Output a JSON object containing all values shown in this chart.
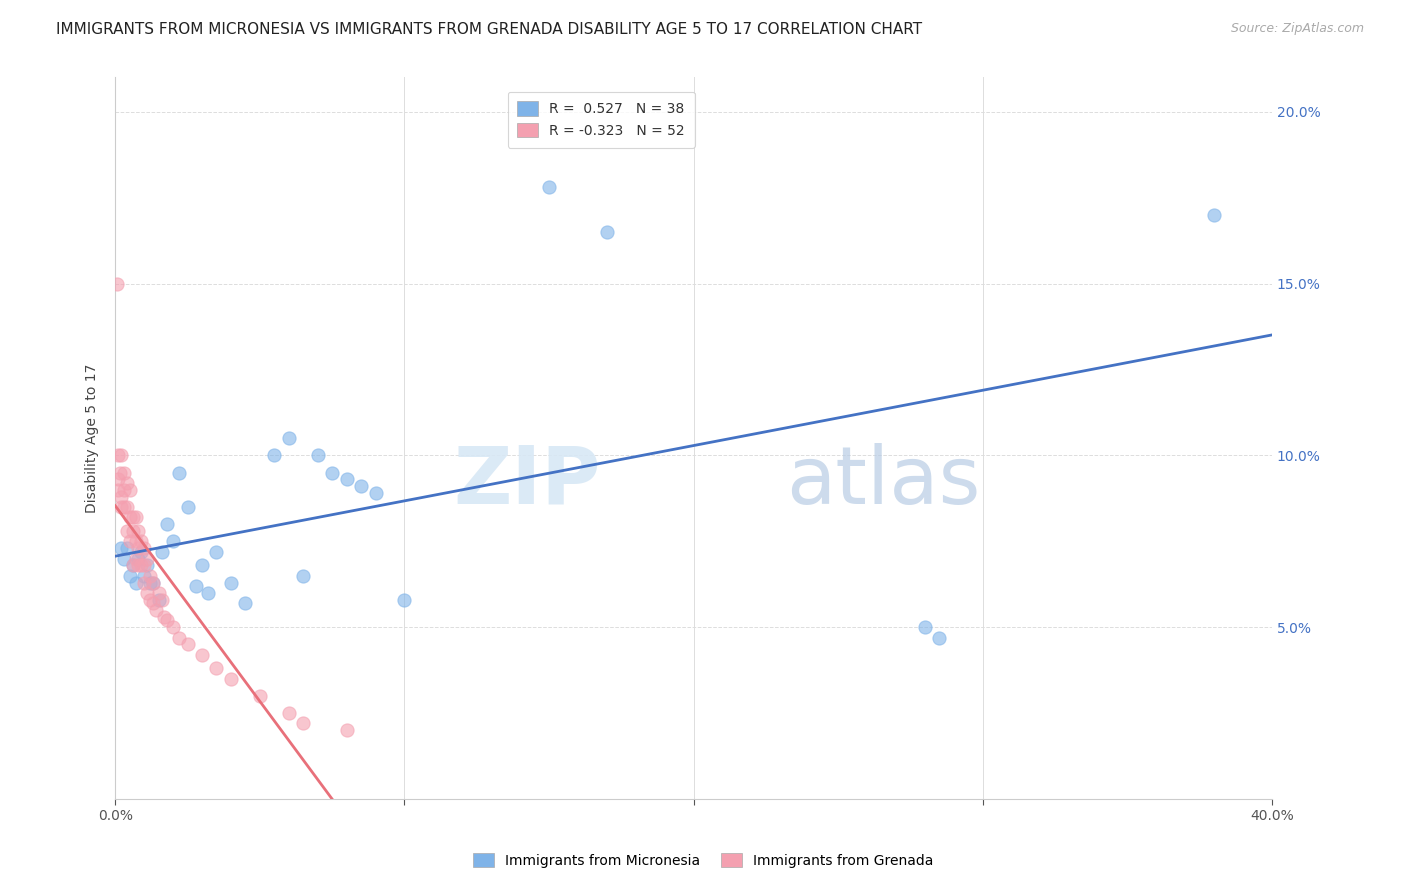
{
  "title": "IMMIGRANTS FROM MICRONESIA VS IMMIGRANTS FROM GRENADA DISABILITY AGE 5 TO 17 CORRELATION CHART",
  "source": "Source: ZipAtlas.com",
  "ylabel": "Disability Age 5 to 17",
  "xlim": [
    0.0,
    0.4
  ],
  "ylim": [
    0.0,
    0.21
  ],
  "xticks": [
    0.0,
    0.1,
    0.2,
    0.3,
    0.4
  ],
  "yticks": [
    0.0,
    0.05,
    0.1,
    0.15,
    0.2
  ],
  "blue_R": 0.527,
  "blue_N": 38,
  "pink_R": -0.323,
  "pink_N": 52,
  "blue_color": "#7FB3E8",
  "pink_color": "#F4A0B0",
  "blue_line_color": "#4472C4",
  "pink_line_color": "#E8707A",
  "grid_color": "#DDDDDD",
  "background_color": "#FFFFFF",
  "blue_scatter_x": [
    0.002,
    0.003,
    0.004,
    0.005,
    0.006,
    0.007,
    0.008,
    0.009,
    0.01,
    0.011,
    0.012,
    0.013,
    0.015,
    0.016,
    0.018,
    0.02,
    0.022,
    0.025,
    0.028,
    0.03,
    0.032,
    0.035,
    0.04,
    0.045,
    0.055,
    0.06,
    0.065,
    0.07,
    0.075,
    0.08,
    0.085,
    0.09,
    0.1,
    0.15,
    0.17,
    0.28,
    0.285,
    0.38
  ],
  "blue_scatter_y": [
    0.073,
    0.07,
    0.073,
    0.065,
    0.068,
    0.063,
    0.07,
    0.072,
    0.065,
    0.068,
    0.063,
    0.063,
    0.058,
    0.072,
    0.08,
    0.075,
    0.095,
    0.085,
    0.062,
    0.068,
    0.06,
    0.072,
    0.063,
    0.057,
    0.1,
    0.105,
    0.065,
    0.1,
    0.095,
    0.093,
    0.091,
    0.089,
    0.058,
    0.178,
    0.165,
    0.05,
    0.047,
    0.17
  ],
  "pink_scatter_x": [
    0.0005,
    0.001,
    0.001,
    0.001,
    0.0015,
    0.002,
    0.002,
    0.002,
    0.003,
    0.003,
    0.003,
    0.004,
    0.004,
    0.004,
    0.005,
    0.005,
    0.005,
    0.006,
    0.006,
    0.006,
    0.007,
    0.007,
    0.007,
    0.008,
    0.008,
    0.008,
    0.009,
    0.009,
    0.01,
    0.01,
    0.01,
    0.011,
    0.011,
    0.012,
    0.012,
    0.013,
    0.013,
    0.014,
    0.015,
    0.016,
    0.017,
    0.018,
    0.02,
    0.022,
    0.025,
    0.03,
    0.035,
    0.04,
    0.05,
    0.06,
    0.065,
    0.08
  ],
  "pink_scatter_y": [
    0.15,
    0.093,
    0.1,
    0.09,
    0.095,
    0.088,
    0.085,
    0.1,
    0.095,
    0.09,
    0.085,
    0.092,
    0.085,
    0.078,
    0.09,
    0.082,
    0.075,
    0.082,
    0.078,
    0.068,
    0.082,
    0.075,
    0.07,
    0.078,
    0.073,
    0.068,
    0.075,
    0.068,
    0.073,
    0.068,
    0.063,
    0.07,
    0.06,
    0.065,
    0.058,
    0.063,
    0.057,
    0.055,
    0.06,
    0.058,
    0.053,
    0.052,
    0.05,
    0.047,
    0.045,
    0.042,
    0.038,
    0.035,
    0.03,
    0.025,
    0.022,
    0.02
  ],
  "title_fontsize": 11,
  "label_fontsize": 10,
  "tick_fontsize": 10,
  "legend_fontsize": 10,
  "source_fontsize": 9
}
